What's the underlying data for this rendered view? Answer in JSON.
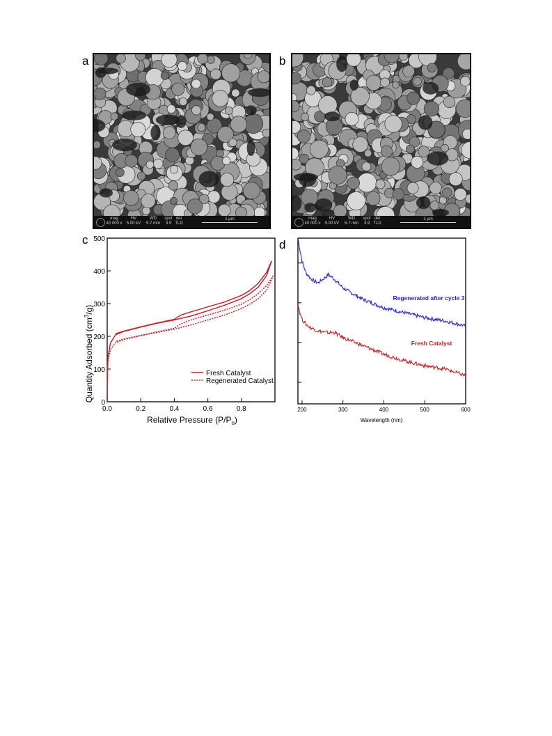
{
  "panels": {
    "a": {
      "letter": "a"
    },
    "b": {
      "letter": "b"
    },
    "c": {
      "letter": "c"
    },
    "d": {
      "letter": "d"
    }
  },
  "sem_info": {
    "a": {
      "headers": [
        "mag",
        "HV",
        "WD",
        "spot",
        "det"
      ],
      "values": [
        "40 000 x",
        "5.00 kV",
        "5.7 mm",
        "3.9",
        "TLD"
      ],
      "scale": "1 µm"
    },
    "b": {
      "headers": [
        "mag",
        "HV",
        "WD",
        "spot",
        "det"
      ],
      "values": [
        "40 000 x",
        "5.00 kV",
        "5.7 mm",
        "3.9",
        "TLD"
      ],
      "scale": "1 µm"
    }
  },
  "chart_data": [
    {
      "id": "c",
      "type": "line",
      "xlabel": "Relative Pressure (P/P",
      "xlabel_sub": "o",
      "xlabel_close": ")",
      "ylabel": "Quantity Adsorbed (cm",
      "ylabel_sup": "3",
      "ylabel_close": "/g)",
      "xlim": [
        0,
        1.0
      ],
      "ylim": [
        0,
        500
      ],
      "xticks": [
        0.0,
        0.2,
        0.4,
        0.6,
        0.8
      ],
      "xtick_labels": [
        "0.0",
        "0.2",
        "0.4",
        "0.6",
        "0.8"
      ],
      "yticks": [
        0,
        100,
        200,
        300,
        400,
        500
      ],
      "ytick_labels": [
        "0",
        "100",
        "200",
        "300",
        "400",
        "500"
      ],
      "legend_position": "bottom-right",
      "series": [
        {
          "name": "Fresh Catalyst",
          "color": "#c0262c",
          "style": "solid",
          "adsorption": [
            [
              0.0,
              0
            ],
            [
              0.002,
              100
            ],
            [
              0.005,
              140
            ],
            [
              0.02,
              180
            ],
            [
              0.05,
              205
            ],
            [
              0.1,
              215
            ],
            [
              0.2,
              228
            ],
            [
              0.3,
              240
            ],
            [
              0.4,
              250
            ],
            [
              0.5,
              262
            ],
            [
              0.6,
              278
            ],
            [
              0.7,
              295
            ],
            [
              0.8,
              315
            ],
            [
              0.85,
              330
            ],
            [
              0.9,
              350
            ],
            [
              0.95,
              385
            ],
            [
              0.98,
              430
            ]
          ],
          "desorption": [
            [
              0.98,
              430
            ],
            [
              0.95,
              395
            ],
            [
              0.9,
              362
            ],
            [
              0.85,
              340
            ],
            [
              0.8,
              325
            ],
            [
              0.7,
              305
            ],
            [
              0.6,
              290
            ],
            [
              0.5,
              275
            ],
            [
              0.44,
              265
            ],
            [
              0.4,
              252
            ],
            [
              0.3,
              241
            ],
            [
              0.2,
              229
            ],
            [
              0.1,
              216
            ],
            [
              0.05,
              208
            ]
          ]
        },
        {
          "name": "Regenerated Catalyst",
          "color": "#c0262c",
          "style": "dotted",
          "adsorption": [
            [
              0.0,
              0
            ],
            [
              0.002,
              90
            ],
            [
              0.005,
              125
            ],
            [
              0.02,
              160
            ],
            [
              0.05,
              180
            ],
            [
              0.1,
              190
            ],
            [
              0.2,
              202
            ],
            [
              0.3,
              212
            ],
            [
              0.4,
              222
            ],
            [
              0.5,
              235
            ],
            [
              0.6,
              250
            ],
            [
              0.7,
              265
            ],
            [
              0.8,
              285
            ],
            [
              0.85,
              298
            ],
            [
              0.9,
              315
            ],
            [
              0.95,
              340
            ],
            [
              0.99,
              385
            ]
          ],
          "desorption": [
            [
              0.99,
              385
            ],
            [
              0.95,
              355
            ],
            [
              0.9,
              330
            ],
            [
              0.85,
              312
            ],
            [
              0.8,
              298
            ],
            [
              0.7,
              280
            ],
            [
              0.6,
              265
            ],
            [
              0.5,
              250
            ],
            [
              0.44,
              238
            ],
            [
              0.4,
              225
            ],
            [
              0.3,
              214
            ],
            [
              0.2,
              203
            ],
            [
              0.1,
              192
            ],
            [
              0.05,
              184
            ]
          ]
        }
      ]
    },
    {
      "id": "d",
      "type": "line",
      "xlabel": "Wavelength (nm)",
      "xlim": [
        190,
        600
      ],
      "xticks": [
        200,
        300,
        400,
        500,
        600
      ],
      "xtick_labels": [
        "200",
        "300",
        "400",
        "500",
        "600"
      ],
      "ylim": [
        0,
        1
      ],
      "yticks": [
        0.13,
        0.37,
        0.61,
        0.85
      ],
      "series": [
        {
          "name": "Regenerated after cycle 3",
          "color": "#2424e0",
          "points": [
            [
              190,
              1.0
            ],
            [
              195,
              0.93
            ],
            [
              200,
              0.86
            ],
            [
              210,
              0.79
            ],
            [
              220,
              0.76
            ],
            [
              230,
              0.74
            ],
            [
              240,
              0.73
            ],
            [
              250,
              0.75
            ],
            [
              260,
              0.77
            ],
            [
              265,
              0.78
            ],
            [
              270,
              0.77
            ],
            [
              280,
              0.75
            ],
            [
              300,
              0.7
            ],
            [
              320,
              0.67
            ],
            [
              350,
              0.63
            ],
            [
              380,
              0.6
            ],
            [
              400,
              0.58
            ],
            [
              450,
              0.55
            ],
            [
              500,
              0.52
            ],
            [
              550,
              0.5
            ],
            [
              600,
              0.47
            ]
          ]
        },
        {
          "name": "Fresh Catalyst",
          "color": "#c42020",
          "points": [
            [
              190,
              0.6
            ],
            [
              195,
              0.55
            ],
            [
              200,
              0.51
            ],
            [
              210,
              0.48
            ],
            [
              220,
              0.46
            ],
            [
              230,
              0.45
            ],
            [
              240,
              0.44
            ],
            [
              260,
              0.43
            ],
            [
              280,
              0.43
            ],
            [
              300,
              0.4
            ],
            [
              320,
              0.38
            ],
            [
              350,
              0.35
            ],
            [
              380,
              0.32
            ],
            [
              400,
              0.3
            ],
            [
              450,
              0.26
            ],
            [
              500,
              0.23
            ],
            [
              550,
              0.21
            ],
            [
              600,
              0.17
            ]
          ]
        }
      ]
    }
  ]
}
